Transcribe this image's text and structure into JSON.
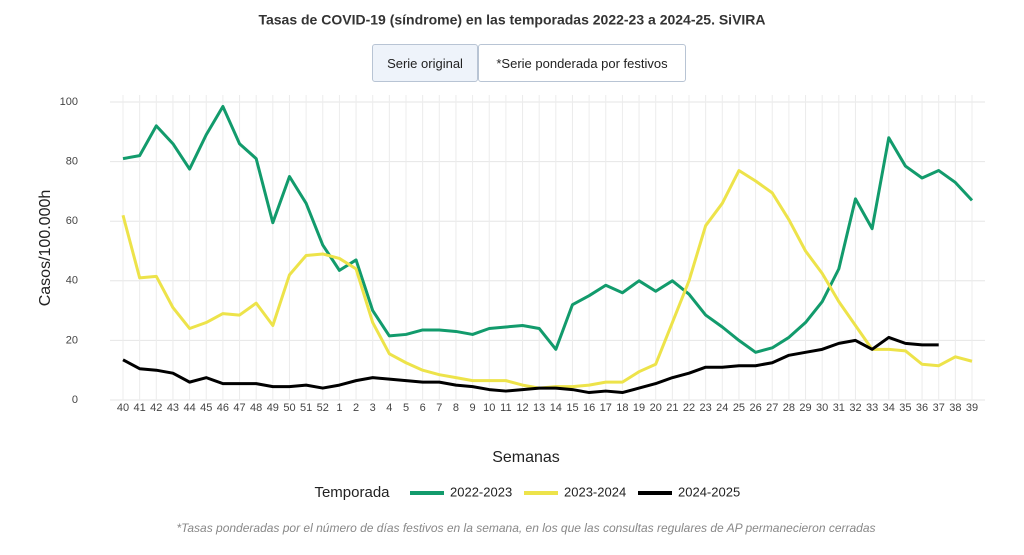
{
  "chart_data": {
    "type": "line",
    "title": "Tasas de COVID-19 (síndrome) en las temporadas 2022-23 a 2024-25. SiVIRA",
    "buttons": [
      "Serie original",
      "*Serie ponderada por festivos"
    ],
    "x_label": "Semanas",
    "y_label": "Casos/100.000h",
    "legend_title": "Temporada",
    "footnote": "*Tasas ponderadas por el número de días festivos en la semana, en los que las consultas regulares de AP permanecieron cerradas",
    "categories": [
      "40",
      "41",
      "42",
      "43",
      "44",
      "45",
      "46",
      "47",
      "48",
      "49",
      "50",
      "51",
      "52",
      "1",
      "2",
      "3",
      "4",
      "5",
      "6",
      "7",
      "8",
      "9",
      "10",
      "11",
      "12",
      "13",
      "14",
      "15",
      "16",
      "17",
      "18",
      "19",
      "20",
      "21",
      "22",
      "23",
      "24",
      "25",
      "26",
      "27",
      "28",
      "29",
      "30",
      "31",
      "32",
      "33",
      "34",
      "35",
      "36",
      "37",
      "38",
      "39"
    ],
    "series": [
      {
        "name": "2022-2023",
        "color": "#129b6c",
        "values": [
          81,
          82,
          92,
          86,
          77.5,
          89,
          98.5,
          86,
          81,
          59.5,
          75,
          66,
          52,
          43.5,
          47,
          30,
          21.5,
          22,
          23.5,
          23.5,
          23,
          22,
          24,
          24.5,
          25,
          24,
          17,
          32,
          35,
          38.5,
          36,
          40,
          36.5,
          40,
          35.5,
          28.5,
          24.5,
          20,
          16,
          17.5,
          21,
          26,
          33,
          44,
          67.5,
          57.5,
          88,
          78.5,
          74.5,
          77,
          73,
          67
        ]
      },
      {
        "name": "2023-2024",
        "color": "#ede34a",
        "values": [
          62,
          41,
          41.5,
          31,
          24,
          26,
          29,
          28.5,
          32.5,
          25,
          42,
          48.5,
          49,
          47.5,
          44,
          26,
          15.5,
          12.5,
          10,
          8.5,
          7.5,
          6.5,
          6.5,
          6.5,
          5,
          4,
          4.5,
          4.5,
          5,
          6,
          6,
          9.5,
          12,
          26,
          40,
          58.5,
          66,
          77,
          73.5,
          69.5,
          60.5,
          50,
          42.5,
          33,
          25,
          17,
          17,
          16.5,
          12,
          11.5,
          14.5,
          13
        ]
      },
      {
        "name": "2024-2025",
        "color": "#000000",
        "values": [
          13.5,
          10.5,
          10,
          9,
          6,
          7.5,
          5.5,
          5.5,
          5.5,
          4.5,
          4.5,
          5,
          4,
          5,
          6.5,
          7.5,
          7,
          6.5,
          6,
          6,
          5,
          4.5,
          3.5,
          3,
          3.5,
          4,
          4,
          3.5,
          2.5,
          3,
          2.5,
          4,
          5.5,
          7.5,
          9,
          11,
          11,
          11.5,
          11.5,
          12.5,
          15,
          16,
          17,
          19,
          20,
          17,
          21,
          19,
          18.5,
          18.5,
          null,
          null
        ]
      }
    ],
    "ylim": [
      0,
      100
    ],
    "yticks": [
      0,
      20,
      40,
      60,
      80,
      100
    ],
    "grid": true
  }
}
